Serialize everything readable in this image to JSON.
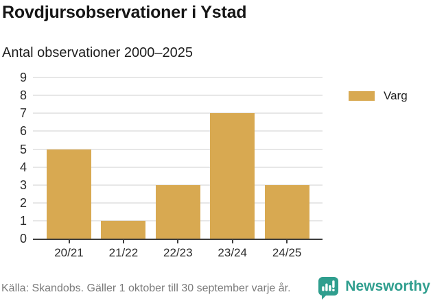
{
  "header": {
    "title": "Rovdjursobservationer i Ystad",
    "subtitle": "Antal observationer 2000–2025"
  },
  "chart_data": {
    "type": "bar",
    "categories": [
      "20/21",
      "21/22",
      "22/23",
      "23/24",
      "24/25"
    ],
    "series": [
      {
        "name": "Varg",
        "values": [
          5,
          1,
          3,
          7,
          3
        ],
        "color": "#d8a951"
      }
    ],
    "title": "Rovdjursobservationer i Ystad",
    "subtitle": "Antal observationer 2000–2025",
    "xlabel": "",
    "ylabel": "",
    "ylim": [
      0,
      9
    ],
    "yticks": [
      0,
      1,
      2,
      3,
      4,
      5,
      6,
      7,
      8,
      9
    ],
    "grid": true,
    "legend_position": "right"
  },
  "legend": {
    "items": [
      {
        "label": "Varg",
        "color": "#d8a951"
      }
    ]
  },
  "footer": {
    "source": "Källa: Skandobs. Gäller 1 oktober till 30 september varje år.",
    "brand": "Newsworthy",
    "brand_color": "#2f9e8e"
  },
  "icons": {
    "brand_icon": "bar-chart-speech-bubble-icon"
  },
  "colors": {
    "bar": "#d8a951",
    "gridline": "#e7e7e7",
    "axis": "#3d3d3d",
    "text_dark": "#1e1e1e",
    "text_muted": "#7b7b7b",
    "brand_teal": "#2f9e8e"
  }
}
